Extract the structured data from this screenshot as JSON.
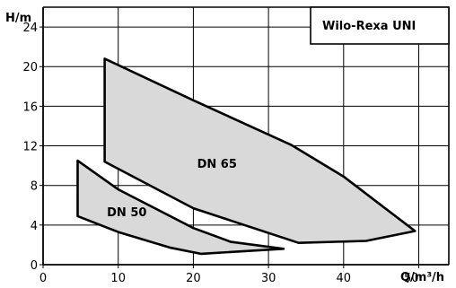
{
  "chart_data": {
    "type": "area",
    "title": "Wilo-Rexa UNI",
    "ylabel": "H/m",
    "xlabel": "Q/m³/h",
    "xlim": [
      0,
      54
    ],
    "ylim": [
      0,
      26
    ],
    "xticks": [
      0,
      10,
      20,
      30,
      40,
      50
    ],
    "yticks": [
      0,
      4,
      8,
      12,
      16,
      20,
      24
    ],
    "grid": true,
    "legend_position": "top-right",
    "series": [
      {
        "name": "DN 65",
        "polygon": [
          [
            8.2,
            20.8
          ],
          [
            20,
            16.6
          ],
          [
            33,
            12.1
          ],
          [
            40,
            8.9
          ],
          [
            45,
            6
          ],
          [
            49.5,
            3.4
          ],
          [
            43,
            2.4
          ],
          [
            34,
            2.2
          ],
          [
            20,
            5.7
          ],
          [
            8.2,
            10.4
          ]
        ]
      },
      {
        "name": "DN 50",
        "polygon": [
          [
            4.6,
            10.5
          ],
          [
            10,
            7.6
          ],
          [
            20,
            3.7
          ],
          [
            25,
            2.3
          ],
          [
            32,
            1.6
          ],
          [
            21,
            1.1
          ],
          [
            17,
            1.7
          ],
          [
            10,
            3.3
          ],
          [
            4.6,
            4.9
          ]
        ]
      }
    ],
    "colors": {
      "fill": "#d9d9d9",
      "stroke": "#000000",
      "grid": "#000000"
    }
  }
}
